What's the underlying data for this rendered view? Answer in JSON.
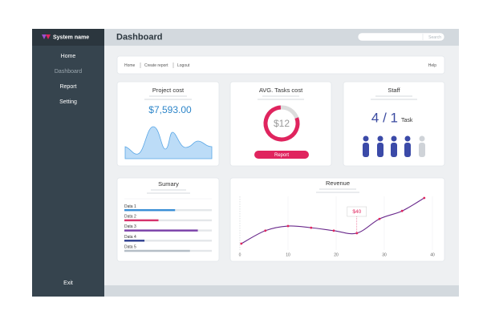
{
  "sidebar": {
    "brand": "System name",
    "menu": [
      "Home",
      "Dashboard",
      "Report",
      "Setting"
    ],
    "exit": "Exit"
  },
  "header": {
    "title": "Dashboard",
    "search": "Search"
  },
  "breadcrumb": {
    "links": [
      "Home",
      "Create report",
      "Logout"
    ],
    "help": "Help"
  },
  "project_cost": {
    "title": "Project cost",
    "value": "$7,593.00"
  },
  "tasks_cost": {
    "title": "AVG. Tasks cost",
    "value": "$12",
    "button": "Report"
  },
  "staff": {
    "title": "Staff",
    "count": "4 / 1",
    "unit": "Task"
  },
  "summary": {
    "title": "Sumary",
    "items": [
      {
        "label": "Data 1",
        "value": 58,
        "color": "#3a8fd6"
      },
      {
        "label": "Data 2",
        "value": 39,
        "color": "#d6336c"
      },
      {
        "label": "Data 3",
        "value": 84,
        "color": "#7a3fa8"
      },
      {
        "label": "Data 4",
        "value": 23,
        "color": "#2f3f8f"
      },
      {
        "label": "Data 5",
        "value": 75,
        "color": "#b5bec6"
      }
    ]
  },
  "revenue": {
    "title": "Revenue",
    "annotation": "$40",
    "x": [
      0.3,
      5.3,
      10,
      14.8,
      19.5,
      24.3,
      29,
      33.7,
      38.3
    ],
    "values": [
      15,
      46,
      57,
      53,
      46,
      40,
      74,
      93,
      124
    ],
    "xlim": [
      0,
      40
    ],
    "xticks": [
      0,
      10,
      20,
      30,
      40
    ],
    "color": "#6a2a8c",
    "marker_color": "#e0245e"
  }
}
